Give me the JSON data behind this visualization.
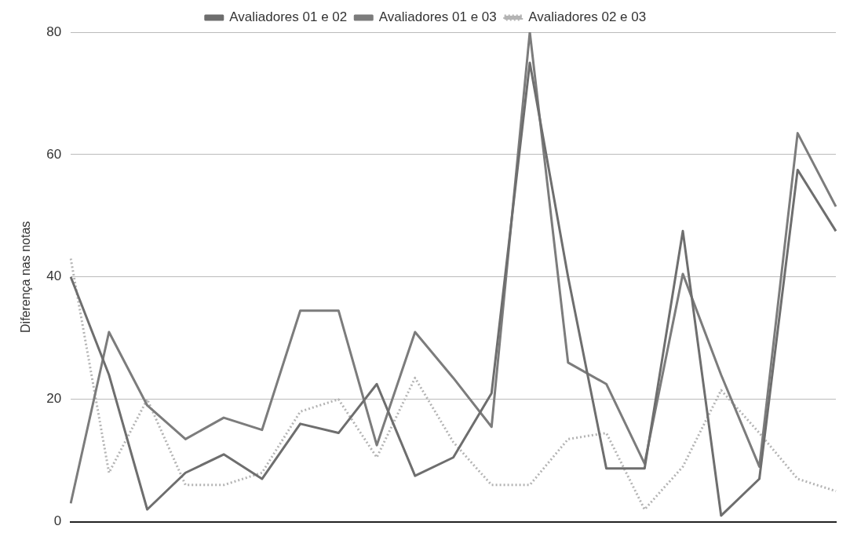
{
  "chart_data": {
    "type": "line",
    "ylabel": "Diferença nas notas",
    "categories": [
      null,
      null,
      null,
      null,
      null,
      null,
      null,
      null,
      null,
      null,
      null,
      null,
      null,
      null,
      null,
      null,
      null,
      null,
      null,
      null,
      null
    ],
    "series": [
      {
        "name": "Avaliadores 01 e 02",
        "color": "#6e6e6e",
        "line_style": "solid",
        "values": [
          40,
          24,
          2,
          8,
          11,
          7,
          16,
          14.5,
          22.5,
          7.5,
          10.5,
          21,
          75,
          40,
          8.7,
          8.7,
          47.5,
          1,
          7,
          57.5,
          47.5
        ]
      },
      {
        "name": "Avaliadores 01 e 03",
        "color": "#7c7c7c",
        "line_style": "solid",
        "values": [
          3,
          31,
          19,
          13.5,
          17,
          15,
          34.5,
          34.5,
          12.5,
          31,
          23.5,
          15.5,
          80,
          26,
          22.5,
          9.5,
          40.5,
          24,
          9,
          63.5,
          51.5
        ]
      },
      {
        "name": "Avaliadores 02 e 03",
        "color": "#b4b4b4",
        "line_style": "dotted",
        "values": [
          43,
          8,
          20,
          6,
          6,
          8,
          18,
          20,
          10.5,
          23.5,
          13,
          6,
          6,
          13.5,
          14.5,
          2,
          9,
          21.5,
          14.5,
          7,
          5
        ]
      }
    ],
    "ylim": [
      0,
      80
    ],
    "yticks": [
      0,
      20,
      40,
      60,
      80
    ],
    "grid": "y",
    "legend": "top"
  }
}
